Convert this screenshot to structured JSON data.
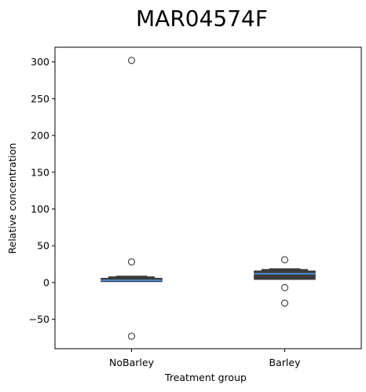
{
  "chart_data": {
    "type": "boxen",
    "title": "MAR04574F",
    "xlabel": "Treatment group",
    "ylabel": "Relative concentration",
    "categories": [
      "NoBarley",
      "Barley"
    ],
    "ylim": [
      -90,
      320
    ],
    "yticks": [
      -50,
      0,
      50,
      100,
      150,
      200,
      250,
      300
    ],
    "grid": false,
    "colors": {
      "box_fill": "#3b3b3b",
      "median_line": "#4c8bd0",
      "outlier_edge": "#3b3b3b"
    },
    "series": [
      {
        "category": "NoBarley",
        "boxes": [
          {
            "low": 1,
            "high": 6,
            "half_width_frac": 0.4
          },
          {
            "low": 2,
            "high": 8,
            "half_width_frac": 0.3
          },
          {
            "low": 3,
            "high": 9,
            "half_width_frac": 0.2
          }
        ],
        "median": 3,
        "outliers": [
          302,
          28,
          -73
        ]
      },
      {
        "category": "Barley",
        "boxes": [
          {
            "low": 4,
            "high": 16,
            "half_width_frac": 0.4
          },
          {
            "low": 6,
            "high": 18,
            "half_width_frac": 0.3
          },
          {
            "low": 8,
            "high": 19,
            "half_width_frac": 0.2
          }
        ],
        "median": 12,
        "outliers": [
          31,
          -7,
          -28
        ]
      }
    ]
  }
}
